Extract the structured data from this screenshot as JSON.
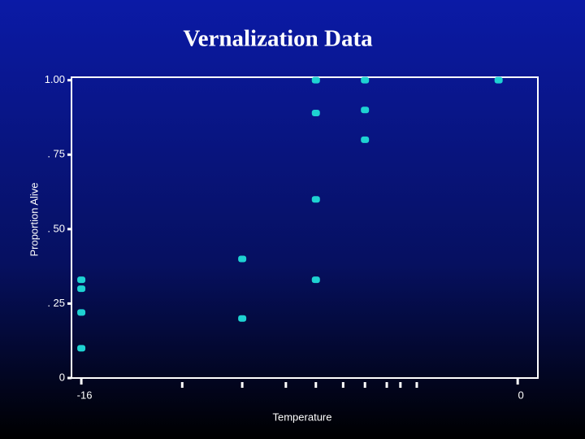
{
  "chart_data": {
    "type": "scatter",
    "title": "Vernalization Data",
    "xlabel": "Temperature",
    "ylabel": "Proportion Alive",
    "series": [
      {
        "name": "Proportion Alive",
        "color": "#1ed2d2",
        "x": [
          -16,
          -16,
          -16,
          -16,
          -10.1,
          -10.1,
          -7.4,
          -7.4,
          -7.4,
          -7.4,
          -5.6,
          -5.6,
          -5.6,
          -0.7
        ],
        "values": [
          0.33,
          0.3,
          0.22,
          0.1,
          0.4,
          0.2,
          1.0,
          0.89,
          0.6,
          0.33,
          1.0,
          0.9,
          0.8,
          1.0
        ]
      }
    ],
    "xlim": [
      -16.36,
      0.74
    ],
    "xticks": [
      -16,
      0
    ],
    "xminorticks": [
      -12.3,
      -10.1,
      -8.5,
      -7.4,
      -6.4,
      -5.6,
      -4.8,
      -4.3,
      -3.7
    ],
    "ylim": [
      0,
      1.01
    ],
    "yticks": [
      0,
      {
        "value": 0.25,
        "label": ". 25"
      },
      {
        "value": 0.5,
        "label": ". 50"
      },
      {
        "value": 0.75,
        "label": ". 75"
      },
      {
        "value": 1,
        "label": "1.00"
      }
    ]
  }
}
